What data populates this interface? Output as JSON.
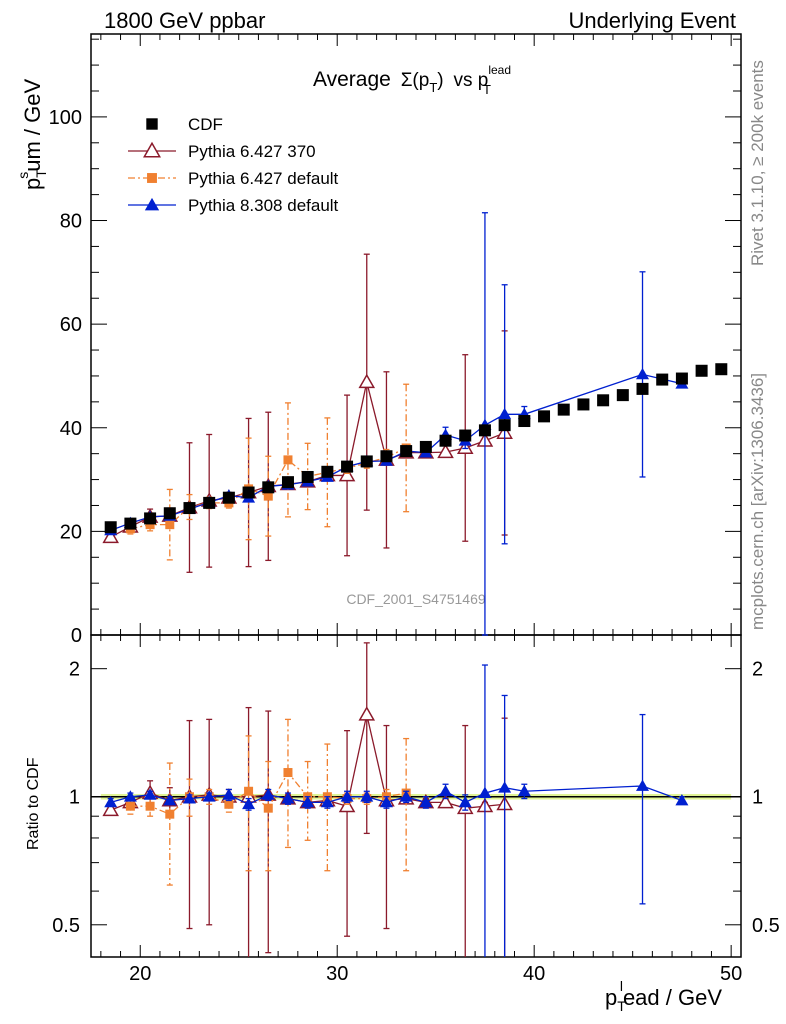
{
  "header": {
    "left": "1800 GeV ppbar",
    "right": "Underlying Event"
  },
  "side_labels": {
    "rivet": "Rivet 3.1.10, ≥ 200k events",
    "mcplots": "mcplots.cern.ch [arXiv:1306.3436]"
  },
  "chart_data": {
    "type": "scatter",
    "analysis_id": "CDF_2001_S4751469",
    "title": {
      "main": "Average",
      "sigma": "Σ(p",
      "sub_t": "T",
      "close": ")",
      "vs": "vs p",
      "sup": "lead",
      "sub_t2": "T"
    },
    "xlabel": {
      "main": "p",
      "sub": "T",
      "sup": "l",
      "rest": "ead / GeV"
    },
    "ylabel_top": {
      "main": "p",
      "sub": "T",
      "sup": "s",
      "rest": "um / GeV"
    },
    "ylabel_ratio": "Ratio to CDF",
    "xlim": [
      17.5,
      50.5
    ],
    "xticks": [
      20,
      30,
      40,
      50
    ],
    "ylim_top": [
      0,
      116
    ],
    "yticks_top": [
      0,
      20,
      40,
      60,
      80,
      100
    ],
    "ylim_ratio": [
      0.42,
      2.4
    ],
    "yticks_ratio": [
      0.5,
      1,
      2
    ],
    "ytick_ratio_labels": [
      "0.5",
      "1",
      "2"
    ],
    "legend_position": "top-left",
    "reference_band_color": "#d8f07a",
    "series": [
      {
        "name": "CDF",
        "color": "#000000",
        "marker": "square",
        "line": "none",
        "x": [
          18.5,
          19.5,
          20.5,
          21.5,
          22.5,
          23.5,
          24.5,
          25.5,
          26.5,
          27.5,
          28.5,
          29.5,
          30.5,
          31.5,
          32.5,
          33.5,
          34.5,
          35.5,
          36.5,
          37.5,
          38.5,
          39.5,
          40.5,
          41.5,
          42.5,
          43.5,
          44.5,
          45.5,
          46.5,
          47.5,
          48.5,
          49.5
        ],
        "y": [
          20.8,
          21.5,
          22.5,
          23.5,
          24.5,
          25.5,
          26.5,
          27.5,
          28.5,
          29.5,
          30.5,
          31.5,
          32.5,
          33.5,
          34.5,
          35.5,
          36.3,
          37.5,
          38.5,
          39.5,
          40.5,
          41.3,
          42.2,
          43.5,
          44.5,
          45.3,
          46.3,
          47.5,
          49.3,
          49.5,
          51.0,
          51.3
        ],
        "ratio": [
          1,
          1,
          1,
          1,
          1,
          1,
          1,
          1,
          1,
          1,
          1,
          1,
          1,
          1,
          1,
          1,
          1,
          1,
          1,
          1,
          1,
          1,
          1,
          1,
          1,
          1,
          1,
          1,
          1,
          1,
          1,
          1
        ]
      },
      {
        "name": "Pythia 6.427 370",
        "color": "#8b1a2b",
        "marker": "triangle-open",
        "line": "solid",
        "x": [
          18.5,
          19.5,
          20.5,
          21.5,
          22.5,
          23.5,
          24.5,
          25.5,
          26.5,
          27.5,
          28.5,
          29.5,
          30.5,
          31.5,
          32.5,
          33.5,
          34.5,
          35.5,
          36.5,
          37.5,
          38.5
        ],
        "y": [
          18.9,
          20.9,
          22.8,
          23.0,
          24.6,
          25.9,
          26.5,
          27.5,
          28.7,
          29.1,
          29.6,
          30.8,
          30.8,
          48.8,
          33.8,
          35.2,
          35.2,
          35.3,
          36.1,
          37.5,
          39.0
        ],
        "yerr": [
          0.5,
          0.5,
          1.5,
          1.5,
          12.5,
          12.8,
          1.0,
          14.3,
          14.3,
          0.5,
          0.5,
          0.5,
          15.5,
          24.7,
          17.0,
          0.5,
          0.5,
          0.5,
          18.0,
          0.5,
          19.7
        ],
        "ratio": [
          0.93,
          0.97,
          1.02,
          0.98,
          1.0,
          1.01,
          1.0,
          1.0,
          1.01,
          0.99,
          0.97,
          0.98,
          0.95,
          1.56,
          0.98,
          0.99,
          0.97,
          0.97,
          0.94,
          0.95,
          0.96
        ],
        "ratio_err": [
          0.02,
          0.02,
          0.07,
          0.07,
          0.51,
          0.51,
          0.04,
          0.62,
          0.58,
          0.02,
          0.02,
          0.02,
          0.48,
          0.74,
          0.49,
          0.02,
          0.02,
          0.02,
          0.53,
          0.02,
          0.57
        ]
      },
      {
        "name": "Pythia 6.427 default",
        "color": "#f08030",
        "marker": "square-small",
        "line": "dashdot",
        "x": [
          19.5,
          20.5,
          21.5,
          22.5,
          23.5,
          24.5,
          25.5,
          26.5,
          27.5,
          28.5,
          29.5,
          30.5,
          31.5,
          32.5,
          33.5
        ],
        "y": [
          20.5,
          21.3,
          21.3,
          24.7,
          25.5,
          25.5,
          28.2,
          26.8,
          33.8,
          30.6,
          31.4,
          32.2,
          33.2,
          34.3,
          36.1
        ],
        "yerr": [
          1.0,
          1.2,
          6.8,
          2.4,
          1.1,
          1.0,
          9.8,
          7.7,
          11.0,
          6.4,
          10.5,
          1.0,
          1.0,
          1.5,
          12.3
        ],
        "ratio": [
          0.95,
          0.95,
          0.91,
          1.0,
          1.0,
          0.96,
          1.03,
          0.94,
          1.14,
          1.0,
          1.0,
          0.99,
          0.99,
          1.0,
          1.02
        ],
        "ratio_err": [
          0.04,
          0.05,
          0.29,
          0.1,
          0.04,
          0.04,
          0.36,
          0.27,
          0.38,
          0.21,
          0.33,
          0.03,
          0.03,
          0.04,
          0.35
        ]
      },
      {
        "name": "Pythia 8.308 default",
        "color": "#0020d0",
        "marker": "triangle-filled",
        "line": "solid",
        "x": [
          18.5,
          19.5,
          20.5,
          21.5,
          22.5,
          23.5,
          24.5,
          25.5,
          26.5,
          27.5,
          28.5,
          29.5,
          30.5,
          31.5,
          32.5,
          33.5,
          34.5,
          35.5,
          36.5,
          37.5,
          38.5,
          39.5,
          45.5,
          47.5
        ],
        "y": [
          20.2,
          21.6,
          22.8,
          23.0,
          24.3,
          25.6,
          26.9,
          26.5,
          28.7,
          29.0,
          29.6,
          30.5,
          32.5,
          33.5,
          33.6,
          35.5,
          35.2,
          38.6,
          37.5,
          40.5,
          42.6,
          42.6,
          50.3,
          48.5
        ],
        "yerr": [
          0.5,
          0.5,
          0.5,
          0.5,
          0.5,
          0.5,
          0.6,
          0.6,
          0.6,
          0.6,
          0.6,
          0.6,
          0.8,
          0.8,
          0.8,
          0.8,
          0.8,
          1.5,
          1.5,
          41.0,
          25.0,
          1.5,
          19.8,
          0.5
        ],
        "ratio": [
          0.97,
          1.0,
          1.01,
          0.98,
          0.99,
          1.0,
          1.01,
          0.96,
          1.01,
          0.99,
          0.97,
          0.97,
          1.0,
          1.0,
          0.97,
          1.0,
          0.97,
          1.03,
          0.97,
          1.02,
          1.05,
          1.03,
          1.06,
          0.98
        ],
        "ratio_err": [
          0.02,
          0.02,
          0.02,
          0.02,
          0.02,
          0.02,
          0.03,
          0.03,
          0.03,
          0.03,
          0.03,
          0.03,
          0.03,
          0.03,
          0.03,
          0.03,
          0.03,
          0.04,
          0.04,
          1.02,
          0.68,
          0.04,
          0.5,
          0.02
        ]
      }
    ]
  }
}
